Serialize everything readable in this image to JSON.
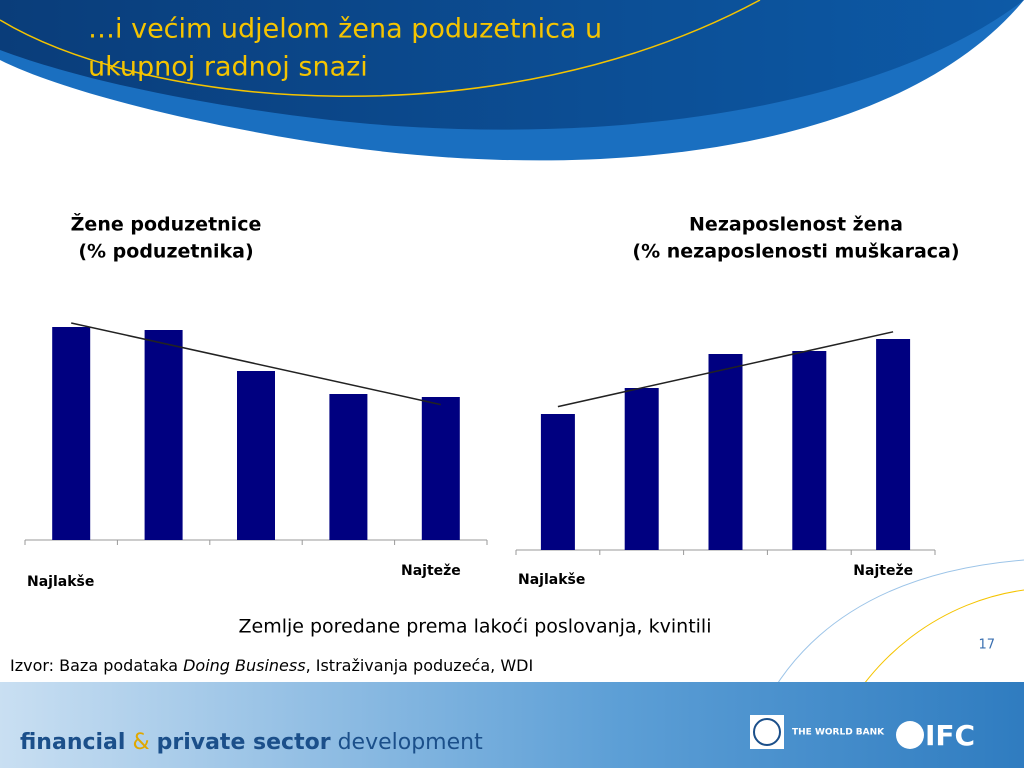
{
  "header": {
    "title": [
      "…i većim udjelom žena poduzetnica u",
      "ukupnoj radnoj snazi"
    ]
  },
  "chart_data": [
    {
      "type": "bar",
      "title": "Žene poduzetnice",
      "subtitle": "(% poduzetnika)",
      "categories": [
        "Najlakše",
        null,
        null,
        null,
        "Najteže"
      ],
      "values": [
        213,
        210,
        169,
        146,
        143
      ],
      "color": "#000080",
      "trendline": true,
      "ylim": [
        0,
        220
      ]
    },
    {
      "type": "bar",
      "title": "Nezaposlenost žena",
      "subtitle": "(% nezaposlenosti muškaraca)",
      "categories": [
        "Najlakše",
        null,
        null,
        null,
        "Najteže"
      ],
      "values": [
        136,
        162,
        196,
        199,
        211
      ],
      "color": "#000080",
      "trendline": true,
      "ylim": [
        0,
        220
      ]
    }
  ],
  "caption": "Zemlje poredane prema lakoći poslovanja, kvintili",
  "page_number": "17",
  "source": {
    "prefix": "Izvor: Baza podataka ",
    "italic": "Doing Business",
    "suffix": ", Istraživanja poduzeća, WDI"
  },
  "footer": {
    "brand": [
      "financial",
      "&",
      "private sector",
      "development"
    ],
    "world_bank": "THE WORLD BANK",
    "ifc": "IFC"
  }
}
